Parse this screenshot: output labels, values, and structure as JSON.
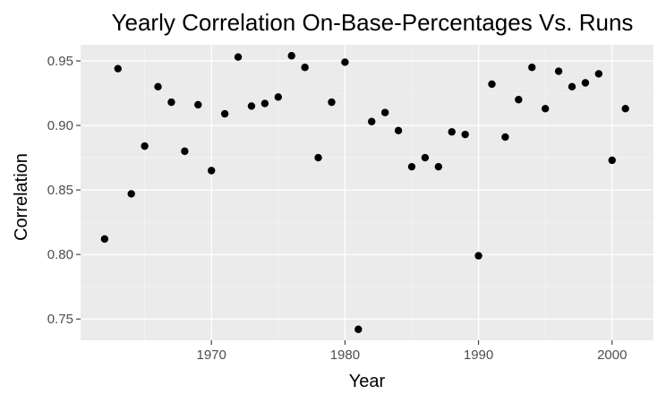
{
  "chart_data": {
    "type": "scatter",
    "title": "Yearly Correlation On-Base-Percentages Vs. Runs",
    "xlabel": "Year",
    "ylabel": "Correlation",
    "xlim": [
      1960.2,
      2003.1
    ],
    "ylim": [
      0.7335,
      0.9625
    ],
    "x_ticks": [
      1970,
      1980,
      1990,
      2000
    ],
    "x_tick_labels": [
      "1970",
      "1980",
      "1990",
      "2000"
    ],
    "y_ticks": [
      0.75,
      0.8,
      0.85,
      0.9,
      0.95
    ],
    "y_tick_labels": [
      "0.75",
      "0.80",
      "0.85",
      "0.90",
      "0.95"
    ],
    "grid": true,
    "background": "#ebebeb",
    "point_color": "#000000",
    "points": [
      {
        "x": 1962,
        "y": 0.812
      },
      {
        "x": 1963,
        "y": 0.944
      },
      {
        "x": 1964,
        "y": 0.847
      },
      {
        "x": 1965,
        "y": 0.884
      },
      {
        "x": 1966,
        "y": 0.93
      },
      {
        "x": 1967,
        "y": 0.918
      },
      {
        "x": 1968,
        "y": 0.88
      },
      {
        "x": 1969,
        "y": 0.916
      },
      {
        "x": 1970,
        "y": 0.865
      },
      {
        "x": 1971,
        "y": 0.909
      },
      {
        "x": 1972,
        "y": 0.953
      },
      {
        "x": 1973,
        "y": 0.915
      },
      {
        "x": 1974,
        "y": 0.917
      },
      {
        "x": 1975,
        "y": 0.922
      },
      {
        "x": 1976,
        "y": 0.954
      },
      {
        "x": 1977,
        "y": 0.945
      },
      {
        "x": 1978,
        "y": 0.875
      },
      {
        "x": 1979,
        "y": 0.918
      },
      {
        "x": 1980,
        "y": 0.949
      },
      {
        "x": 1981,
        "y": 0.742
      },
      {
        "x": 1982,
        "y": 0.903
      },
      {
        "x": 1983,
        "y": 0.91
      },
      {
        "x": 1984,
        "y": 0.896
      },
      {
        "x": 1985,
        "y": 0.868
      },
      {
        "x": 1986,
        "y": 0.875
      },
      {
        "x": 1987,
        "y": 0.868
      },
      {
        "x": 1988,
        "y": 0.895
      },
      {
        "x": 1989,
        "y": 0.893
      },
      {
        "x": 1990,
        "y": 0.799
      },
      {
        "x": 1991,
        "y": 0.932
      },
      {
        "x": 1992,
        "y": 0.891
      },
      {
        "x": 1993,
        "y": 0.92
      },
      {
        "x": 1994,
        "y": 0.945
      },
      {
        "x": 1995,
        "y": 0.913
      },
      {
        "x": 1996,
        "y": 0.942
      },
      {
        "x": 1997,
        "y": 0.93
      },
      {
        "x": 1998,
        "y": 0.933
      },
      {
        "x": 1999,
        "y": 0.94
      },
      {
        "x": 2000,
        "y": 0.873
      },
      {
        "x": 2001,
        "y": 0.913
      }
    ]
  }
}
